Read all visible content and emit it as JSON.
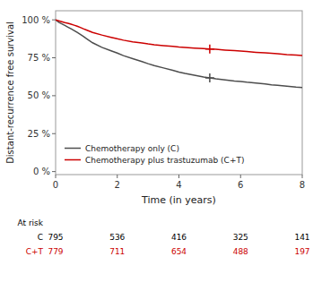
{
  "chart_data": {
    "type": "line",
    "ylabel": "Distant-recurrence free survival",
    "xlabel": "Time (in years)",
    "xlim": [
      0,
      8
    ],
    "ylim": [
      -0.02,
      1.06
    ],
    "yticks": [
      {
        "value": 0,
        "label": "0 %"
      },
      {
        "value": 0.25,
        "label": "25 %"
      },
      {
        "value": 0.5,
        "label": "50 %"
      },
      {
        "value": 0.75,
        "label": "75 %"
      },
      {
        "value": 1.0,
        "label": "100 %"
      }
    ],
    "xticks": [
      0,
      2,
      4,
      6,
      8
    ],
    "grid": false,
    "legend": "lower left",
    "at_risk_label": "At risk",
    "series": [
      {
        "name": "Chemotherapy only (C)",
        "color": "#4d4d4d",
        "x": [
          0.0,
          0.1,
          0.2,
          0.3,
          0.4,
          0.5,
          0.6,
          0.7,
          0.8,
          0.9,
          1.0,
          1.2,
          1.5,
          1.8,
          2.0,
          2.2,
          2.5,
          2.8,
          3.0,
          3.2,
          3.5,
          3.8,
          4.0,
          4.2,
          4.5,
          4.8,
          5.0,
          5.2,
          5.5,
          5.8,
          6.0,
          6.2,
          6.5,
          6.8,
          7.0,
          7.2,
          7.5,
          7.8,
          8.0
        ],
        "values": [
          1.0,
          0.984,
          0.974,
          0.963,
          0.952,
          0.941,
          0.93,
          0.917,
          0.904,
          0.891,
          0.876,
          0.849,
          0.819,
          0.796,
          0.781,
          0.764,
          0.744,
          0.725,
          0.711,
          0.699,
          0.683,
          0.667,
          0.656,
          0.647,
          0.635,
          0.623,
          0.617,
          0.611,
          0.604,
          0.597,
          0.594,
          0.589,
          0.584,
          0.578,
          0.572,
          0.568,
          0.563,
          0.557,
          0.554
        ],
        "censor_x": 5.0,
        "censor_y": 0.617,
        "at_risk_name": "C",
        "at_risk": [
          795,
          536,
          416,
          325,
          141
        ]
      },
      {
        "name": "Chemotherapy plus trastuzumab (C+T)",
        "color": "#cc0000",
        "x": [
          0.0,
          0.1,
          0.2,
          0.3,
          0.4,
          0.5,
          0.6,
          0.7,
          0.8,
          0.9,
          1.0,
          1.2,
          1.5,
          1.8,
          2.0,
          2.2,
          2.5,
          2.8,
          3.0,
          3.2,
          3.5,
          3.8,
          4.0,
          4.2,
          4.5,
          4.8,
          5.0,
          5.2,
          5.5,
          5.8,
          6.0,
          6.2,
          6.5,
          6.8,
          7.0,
          7.2,
          7.5,
          7.8,
          8.0
        ],
        "values": [
          1.0,
          0.994,
          0.988,
          0.982,
          0.977,
          0.971,
          0.965,
          0.958,
          0.95,
          0.941,
          0.933,
          0.917,
          0.9,
          0.885,
          0.875,
          0.866,
          0.855,
          0.847,
          0.841,
          0.836,
          0.83,
          0.825,
          0.821,
          0.818,
          0.814,
          0.81,
          0.808,
          0.806,
          0.801,
          0.797,
          0.795,
          0.791,
          0.786,
          0.782,
          0.779,
          0.776,
          0.771,
          0.768,
          0.765
        ],
        "censor_x": 5.0,
        "censor_y": 0.808,
        "at_risk_name": "C+T",
        "at_risk": [
          779,
          711,
          654,
          488,
          197
        ]
      }
    ]
  }
}
